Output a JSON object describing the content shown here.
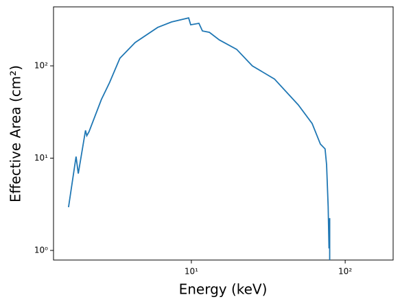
{
  "chart_data": {
    "type": "line",
    "xlabel": "Energy (keV)",
    "ylabel": "Effective Area (cm²)",
    "xscale": "log",
    "yscale": "log",
    "xlim": [
      1.27,
      205
    ],
    "ylim": [
      0.787,
      436
    ],
    "xticks": [
      {
        "value": 10,
        "label": "10¹"
      },
      {
        "value": 100,
        "label": "10²"
      }
    ],
    "yticks": [
      {
        "value": 1,
        "label": "10⁰"
      },
      {
        "value": 10,
        "label": "10¹"
      },
      {
        "value": 100,
        "label": "10²"
      }
    ],
    "series": [
      {
        "color": "#1f77b4",
        "x": [
          1.59,
          1.78,
          1.84,
          2.05,
          2.09,
          2.16,
          2.6,
          2.94,
          3.43,
          4.31,
          6.04,
          7.43,
          9.6,
          9.9,
          11.2,
          11.8,
          13.1,
          15.2,
          19.7,
          24.9,
          34.7,
          49.6,
          61,
          69,
          74,
          75.7,
          77.5,
          78.5,
          79.3,
          79.3
        ],
        "values": [
          2.94,
          10.4,
          6.8,
          20,
          17.5,
          19.3,
          43.2,
          66,
          121,
          179,
          261,
          299,
          331,
          279,
          289,
          239,
          231,
          191,
          151,
          100,
          72,
          37.7,
          23.7,
          14.2,
          12.6,
          8.5,
          3.0,
          1.05,
          2.24,
          0.78
        ]
      }
    ]
  }
}
